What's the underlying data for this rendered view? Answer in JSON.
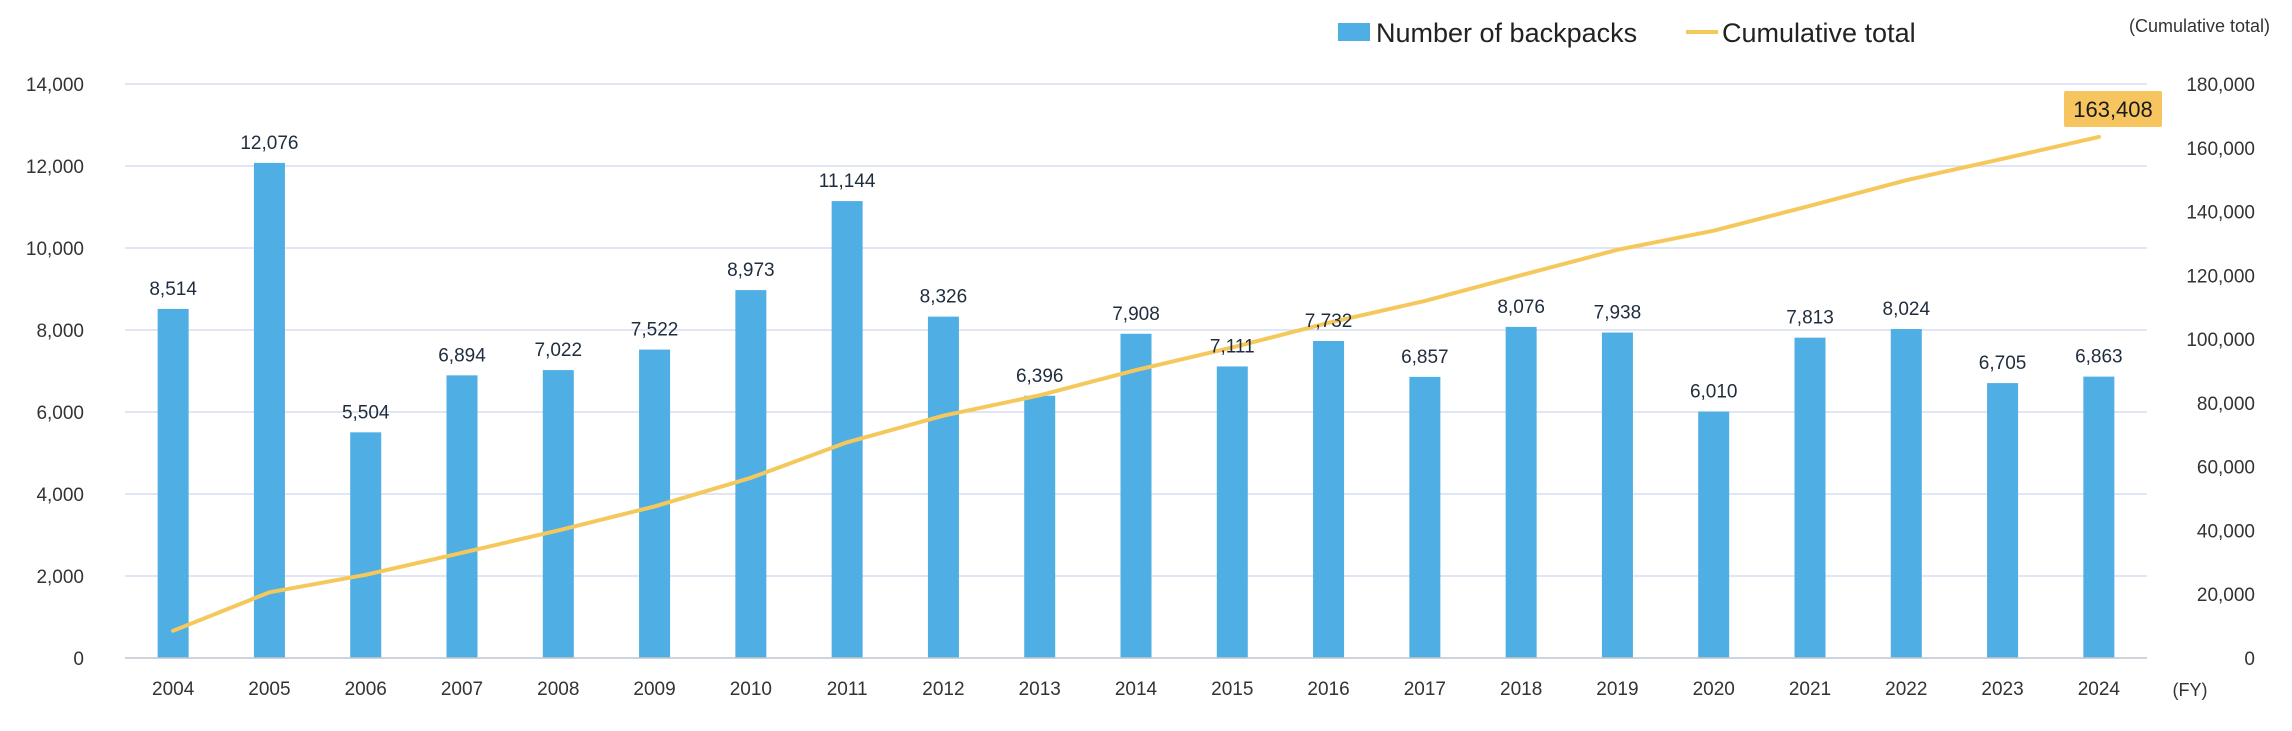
{
  "chart_data": {
    "type": "bar",
    "categories": [
      "2004",
      "2005",
      "2006",
      "2007",
      "2008",
      "2009",
      "2010",
      "2011",
      "2012",
      "2013",
      "2014",
      "2015",
      "2016",
      "2017",
      "2018",
      "2019",
      "2020",
      "2021",
      "2022",
      "2023",
      "2024"
    ],
    "series": [
      {
        "name": "Number of backpacks",
        "type": "bar",
        "axis": "left",
        "values": [
          8514,
          12076,
          5504,
          6894,
          7022,
          7522,
          8973,
          11144,
          8326,
          6396,
          7908,
          7111,
          7732,
          6857,
          8076,
          7938,
          6010,
          7813,
          8024,
          6705,
          6863
        ],
        "labels": [
          "8,514",
          "12,076",
          "5,504",
          "6,894",
          "7,022",
          "7,522",
          "8,973",
          "11,144",
          "8,326",
          "6,396",
          "7,908",
          "7,111",
          "7,732",
          "6,857",
          "8,076",
          "7,938",
          "6,010",
          "7,813",
          "8,024",
          "6,705",
          "6,863"
        ]
      },
      {
        "name": "Cumulative total",
        "type": "line",
        "axis": "right",
        "values": [
          8514,
          20590,
          26094,
          32988,
          40010,
          47532,
          56505,
          67649,
          75975,
          82371,
          90279,
          97390,
          105122,
          111979,
          120055,
          127993,
          134003,
          141816,
          149840,
          156545,
          163408
        ]
      }
    ],
    "left_axis": {
      "ylim": [
        0,
        14000
      ],
      "ticks": [
        "0",
        "2,000",
        "4,000",
        "6,000",
        "8,000",
        "10,000",
        "12,000",
        "14,000"
      ]
    },
    "right_axis": {
      "ylim": [
        0,
        180000
      ],
      "ticks": [
        "0",
        "20,000",
        "40,000",
        "60,000",
        "80,000",
        "100,000",
        "120,000",
        "140,000",
        "160,000",
        "180,000"
      ],
      "label": "(Cumulative total)"
    },
    "x_unit": "(FY)",
    "callout": "163,408",
    "grid": true,
    "legend_position": "top"
  },
  "colors": {
    "bar": "#4faee3",
    "line": "#f5c85c",
    "callout_bg": "#f6c55f",
    "grid": "#d5ddf0",
    "axis": "#bfc5cf"
  }
}
